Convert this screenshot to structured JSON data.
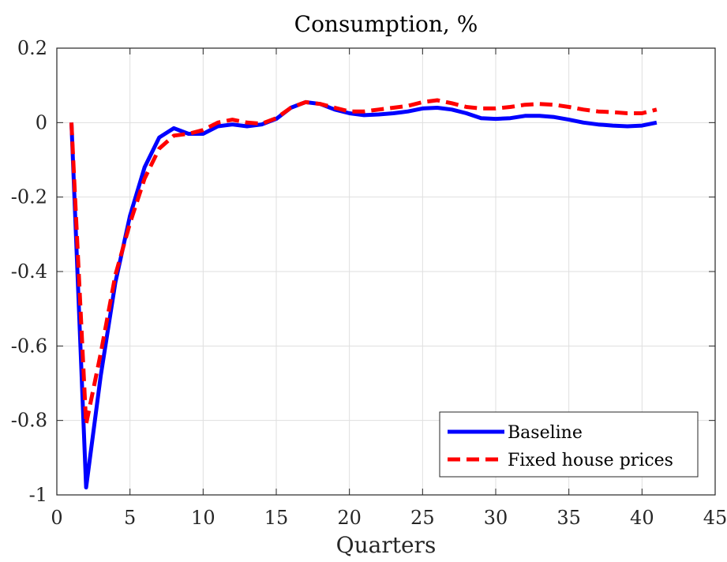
{
  "chart_data": {
    "type": "line",
    "title": "Consumption, %",
    "xlabel": "Quarters",
    "ylabel": "",
    "xlim": [
      0,
      45
    ],
    "ylim": [
      -1,
      0.2
    ],
    "xticks": [
      0,
      5,
      10,
      15,
      20,
      25,
      30,
      35,
      40,
      45
    ],
    "xtick_labels": [
      "0",
      "5",
      "10",
      "15",
      "20",
      "25",
      "30",
      "35",
      "40",
      "45"
    ],
    "yticks": [
      -1,
      -0.8,
      -0.6,
      -0.4,
      -0.2,
      0,
      0.2
    ],
    "ytick_labels": [
      "-1",
      "-0.8",
      "-0.6",
      "-0.4",
      "-0.2",
      "0",
      "0.2"
    ],
    "grid": true,
    "legend_position": "bottom-right",
    "x": [
      1,
      2,
      3,
      4,
      5,
      6,
      7,
      8,
      9,
      10,
      11,
      12,
      13,
      14,
      15,
      16,
      17,
      18,
      19,
      20,
      21,
      22,
      23,
      24,
      25,
      26,
      27,
      28,
      29,
      30,
      31,
      32,
      33,
      34,
      35,
      36,
      37,
      38,
      39,
      40,
      41
    ],
    "series": [
      {
        "name": "Baseline",
        "color": "#0000ff",
        "style": "solid",
        "values": [
          0.0,
          -0.98,
          -0.68,
          -0.43,
          -0.25,
          -0.12,
          -0.04,
          -0.015,
          -0.03,
          -0.03,
          -0.01,
          -0.005,
          -0.01,
          -0.005,
          0.01,
          0.04,
          0.055,
          0.05,
          0.035,
          0.025,
          0.02,
          0.022,
          0.025,
          0.03,
          0.038,
          0.04,
          0.035,
          0.025,
          0.012,
          0.01,
          0.012,
          0.018,
          0.018,
          0.015,
          0.008,
          0.0,
          -0.005,
          -0.008,
          -0.01,
          -0.008,
          0.0
        ]
      },
      {
        "name": "Fixed house prices",
        "color": "#ff0000",
        "style": "dashed",
        "values": [
          0.0,
          -0.81,
          -0.62,
          -0.41,
          -0.27,
          -0.15,
          -0.07,
          -0.035,
          -0.03,
          -0.02,
          0.0,
          0.008,
          0.0,
          -0.003,
          0.012,
          0.04,
          0.055,
          0.05,
          0.04,
          0.03,
          0.03,
          0.035,
          0.04,
          0.045,
          0.055,
          0.06,
          0.052,
          0.042,
          0.038,
          0.038,
          0.042,
          0.048,
          0.05,
          0.048,
          0.042,
          0.035,
          0.03,
          0.028,
          0.025,
          0.025,
          0.035
        ]
      }
    ]
  }
}
